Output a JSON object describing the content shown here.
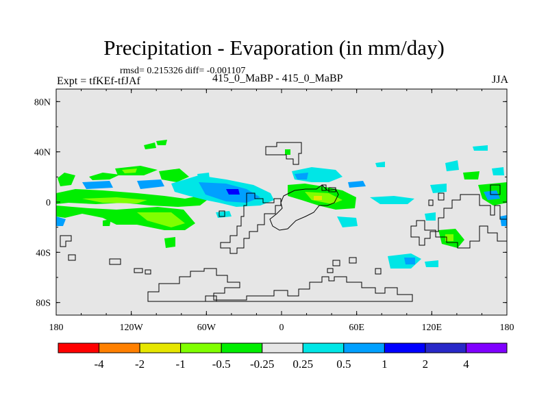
{
  "title": "Precipitation - Evaporation (in mm/day)",
  "stats": "rmsd= 0.215326 diff= -0.001107",
  "experiment": "Expt = tfKEf-tfJAf",
  "center_label": "415_0_MaBP - 415_0_MaBP",
  "season": "JJA",
  "map": {
    "lon_ticks": [
      "180",
      "120W",
      "60W",
      "0",
      "60E",
      "120E",
      "180"
    ],
    "lat_ticks": [
      "80N",
      "40N",
      "0",
      "40S",
      "80S"
    ],
    "background_color": "#e6e6e6"
  },
  "colorbar": {
    "colors": [
      "#ff0000",
      "#ff8000",
      "#e6e600",
      "#80ff00",
      "#00ee00",
      "#e6e6e6",
      "#00e6e6",
      "#00a0ff",
      "#0000ff",
      "#2828c8",
      "#8000ff"
    ],
    "labels": [
      "-4",
      "-2",
      "-1",
      "-0.5",
      "-0.25",
      "0.25",
      "0.5",
      "1",
      "2",
      "4"
    ]
  }
}
